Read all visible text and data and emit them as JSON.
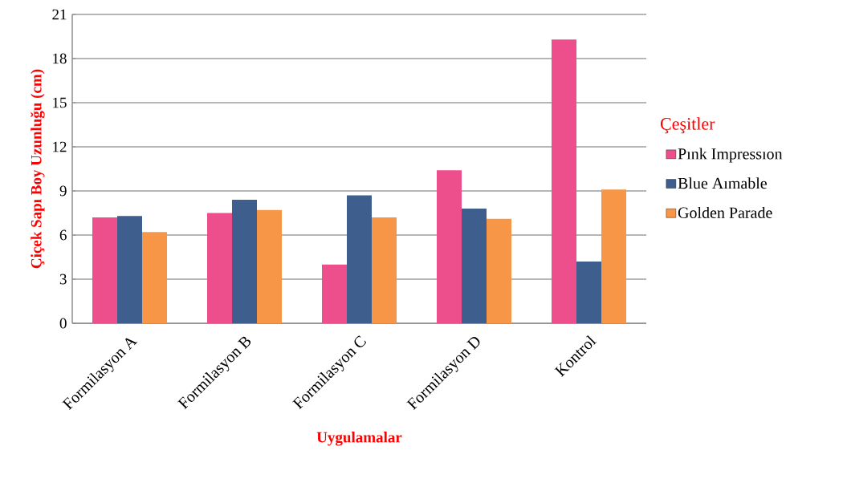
{
  "chart_data": {
    "type": "bar",
    "xlabel": "Uygulamalar",
    "ylabel": "Çiçek Sapı Boy Uzunluğu (cm)",
    "legend_title": "Çeşitler",
    "categories": [
      "Formilasyon A",
      "Formilasyon B",
      "Formilasyon C",
      "Formilasyon D",
      "Kontrol"
    ],
    "series": [
      {
        "name": "Pınk Impressıon",
        "color": "#ec4f8c",
        "values": [
          7.2,
          7.5,
          4.0,
          10.4,
          19.3
        ]
      },
      {
        "name": "Blue Aımable",
        "color": "#3e5e8e",
        "values": [
          7.3,
          8.4,
          8.7,
          7.8,
          4.2
        ]
      },
      {
        "name": "Golden Parade",
        "color": "#f79646",
        "values": [
          6.2,
          7.7,
          7.2,
          7.1,
          9.1
        ]
      }
    ],
    "ylim": [
      0,
      21
    ],
    "yticks": [
      0,
      3,
      6,
      9,
      12,
      15,
      18,
      21
    ],
    "grid": "y",
    "legend": "right"
  }
}
